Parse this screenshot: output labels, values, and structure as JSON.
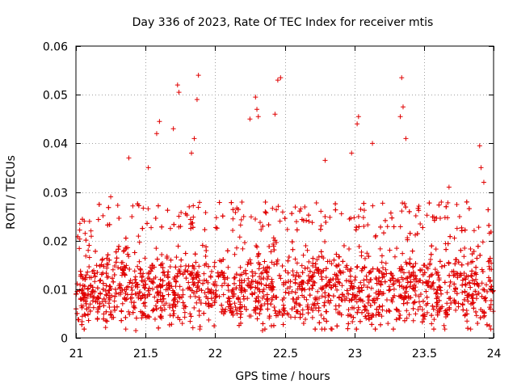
{
  "chart_data": {
    "type": "scatter",
    "title": "Day 336 of 2023, Rate Of TEC Index for receiver mtis",
    "xlabel": "GPS time / hours",
    "ylabel": "ROTI / TECUs",
    "xlim": [
      21,
      24
    ],
    "ylim": [
      0,
      0.06
    ],
    "grid": true,
    "marker": "+",
    "color": "#e00000",
    "x_ticks": [
      "21",
      "21.5",
      "22",
      "22.5",
      "23",
      "23.5",
      "24"
    ],
    "y_ticks": [
      "0",
      "0.01",
      "0.02",
      "0.03",
      "0.04",
      "0.05",
      "0.06"
    ],
    "series": [
      {
        "name": "ROTI",
        "density": "approx. 3000 points; bulk between 0.003 and 0.02 TECU",
        "notable_points": [
          {
            "x": 21.06,
            "y": 0.024
          },
          {
            "x": 21.25,
            "y": 0.029
          },
          {
            "x": 21.38,
            "y": 0.037
          },
          {
            "x": 21.43,
            "y": 0.0015
          },
          {
            "x": 21.52,
            "y": 0.035
          },
          {
            "x": 21.58,
            "y": 0.042
          },
          {
            "x": 21.6,
            "y": 0.0445
          },
          {
            "x": 21.7,
            "y": 0.043
          },
          {
            "x": 21.73,
            "y": 0.052
          },
          {
            "x": 21.74,
            "y": 0.0505
          },
          {
            "x": 21.83,
            "y": 0.038
          },
          {
            "x": 21.85,
            "y": 0.041
          },
          {
            "x": 21.87,
            "y": 0.049
          },
          {
            "x": 21.88,
            "y": 0.054
          },
          {
            "x": 22.25,
            "y": 0.045
          },
          {
            "x": 22.29,
            "y": 0.0495
          },
          {
            "x": 22.3,
            "y": 0.047
          },
          {
            "x": 22.31,
            "y": 0.0455
          },
          {
            "x": 22.34,
            "y": 0.0015
          },
          {
            "x": 22.43,
            "y": 0.046
          },
          {
            "x": 22.45,
            "y": 0.053
          },
          {
            "x": 22.47,
            "y": 0.0535
          },
          {
            "x": 22.79,
            "y": 0.0365
          },
          {
            "x": 22.98,
            "y": 0.038
          },
          {
            "x": 23.02,
            "y": 0.044
          },
          {
            "x": 23.03,
            "y": 0.0455
          },
          {
            "x": 23.13,
            "y": 0.04
          },
          {
            "x": 23.33,
            "y": 0.0455
          },
          {
            "x": 23.34,
            "y": 0.0535
          },
          {
            "x": 23.35,
            "y": 0.0475
          },
          {
            "x": 23.37,
            "y": 0.041
          },
          {
            "x": 23.68,
            "y": 0.031
          },
          {
            "x": 23.9,
            "y": 0.0395
          },
          {
            "x": 23.91,
            "y": 0.035
          },
          {
            "x": 23.93,
            "y": 0.032
          },
          {
            "x": 23.97,
            "y": 0.0215
          }
        ]
      }
    ]
  }
}
